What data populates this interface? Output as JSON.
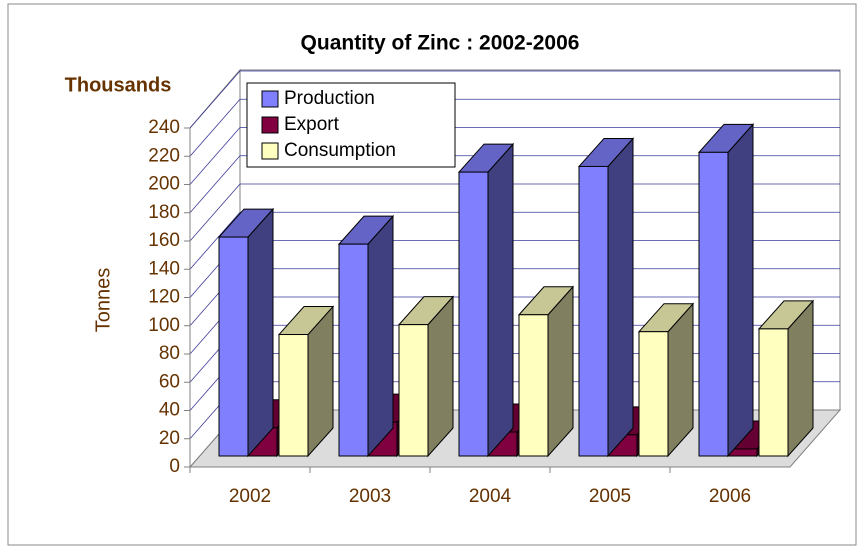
{
  "chart_data": {
    "type": "bar3d",
    "title": "Quantity of Zinc : 2002-2006",
    "unit_label": "Thousands",
    "y_label": "Tonnes",
    "categories": [
      "2002",
      "2003",
      "2004",
      "2005",
      "2006"
    ],
    "series": [
      {
        "name": "Production",
        "color": "#8080ff",
        "values": [
          155,
          150,
          201,
          205,
          215
        ]
      },
      {
        "name": "Export",
        "color": "#800040",
        "values": [
          20,
          24,
          17,
          15,
          5
        ]
      },
      {
        "name": "Consumption",
        "color": "#ffffc0",
        "values": [
          86,
          93,
          100,
          88,
          90
        ]
      }
    ],
    "ylim": [
      0,
      240
    ],
    "yticks": [
      0,
      20,
      40,
      60,
      80,
      100,
      120,
      140,
      160,
      180,
      200,
      220,
      240
    ],
    "grid": true
  }
}
